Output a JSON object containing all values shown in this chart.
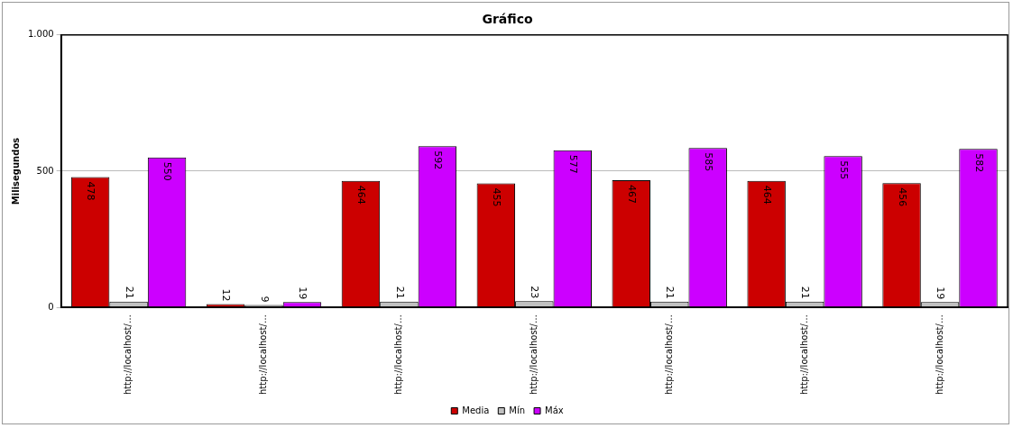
{
  "chart_data": {
    "type": "bar",
    "title": "Gráfico",
    "ylabel": "Milisegundos",
    "categories": [
      "http://localhost/…",
      "http://localhost/…",
      "http://localhost/…",
      "http://localhost/…",
      "http://localhost/…",
      "http://localhost/…",
      "http://localhost/…"
    ],
    "series": [
      {
        "name": "Media",
        "color": "#cc0000",
        "values": [
          478,
          12,
          464,
          455,
          467,
          464,
          456
        ]
      },
      {
        "name": "Mín",
        "color": "#c0c0c0",
        "values": [
          21,
          9,
          21,
          23,
          21,
          21,
          19
        ]
      },
      {
        "name": "Máx",
        "color": "#cc00ff",
        "values": [
          550,
          19,
          592,
          577,
          585,
          555,
          582
        ]
      }
    ],
    "ylim": [
      0,
      1000
    ],
    "yticks": [
      0,
      500,
      {
        "value": 1000,
        "label": "1.000"
      }
    ],
    "grid": "y",
    "legend": "bottom",
    "data_labels": true
  }
}
